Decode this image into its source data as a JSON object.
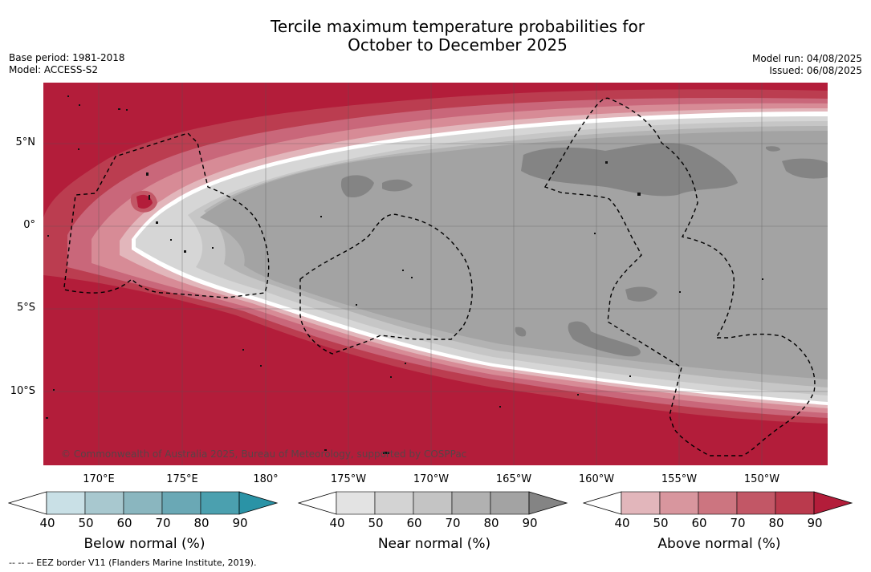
{
  "title": {
    "line1": "Tercile maximum temperature probabilities for",
    "line2": "October to December 2025"
  },
  "meta_left": {
    "base_period": "Base period: 1981-2018",
    "model": "Model: ACCESS-S2"
  },
  "meta_right": {
    "model_run": "Model run: 04/08/2025",
    "issued": "Issued: 06/08/2025"
  },
  "map": {
    "lat_labels": [
      "5°N",
      "0°",
      "5°S",
      "10°S"
    ],
    "lon_labels": [
      "170°E",
      "175°E",
      "180°",
      "175°W",
      "170°W",
      "165°W",
      "160°W",
      "155°W",
      "150°W"
    ],
    "copyright": "© Commonwealth of Australia 2025, Bureau of Meteorology, supported by COSPPac"
  },
  "colorbars": [
    {
      "title": "Below normal (%)",
      "ticks": [
        "40",
        "50",
        "60",
        "70",
        "80",
        "90"
      ],
      "colors": [
        "#ffffff",
        "#c9e0e6",
        "#a8c8cf",
        "#8ab6bf",
        "#6aa8b5",
        "#4ba0af",
        "#2a93a6"
      ]
    },
    {
      "title": "Near normal (%)",
      "ticks": [
        "40",
        "50",
        "60",
        "70",
        "80",
        "90"
      ],
      "colors": [
        "#ffffff",
        "#e3e3e3",
        "#d3d3d3",
        "#c4c4c4",
        "#b1b1b1",
        "#a3a3a3",
        "#848484"
      ]
    },
    {
      "title": "Above normal (%)",
      "ticks": [
        "40",
        "50",
        "60",
        "70",
        "80",
        "90"
      ],
      "colors": [
        "#ffffff",
        "#e2b6bb",
        "#d8969e",
        "#cc7580",
        "#c25766",
        "#ba3a4d",
        "#b31d3a"
      ]
    }
  ],
  "footer": "--  --  -- EEZ border V11 (Flanders Marine Institute, 2019)."
}
